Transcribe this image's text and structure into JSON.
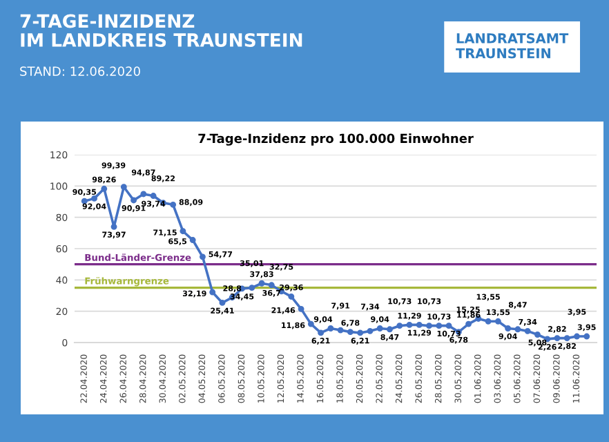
{
  "chart_data": {
    "type": "line",
    "title": "7-Tage-Inzidenz pro 100.000 Einwohner",
    "annotations": [
      "7-TAGE-INZIDENZ\nIM LANDKREIS TRAUNSTEIN",
      "STAND: 12.06.2020",
      "LANDRATSAMT\nTRAUNSTEIN"
    ],
    "categories": [
      "22.04.2020",
      null,
      "24.04.2020",
      null,
      "26.04.2020",
      null,
      "28.04.2020",
      null,
      "30.04.2020",
      null,
      "02.05.2020",
      null,
      "04.05.2020",
      null,
      "06.05.2020",
      null,
      "08.05.2020",
      null,
      "10.05.2020",
      null,
      "12.05.2020",
      null,
      "14.05.2020",
      null,
      "16.05.2020",
      null,
      "18.05.2020",
      null,
      "20.05.2020",
      null,
      "22.05.2020",
      null,
      "24.05.2020",
      null,
      "26.05.2020",
      null,
      "28.05.2020",
      null,
      "30.05.2020",
      null,
      "01.06.2020",
      null,
      "03.06.2020",
      null,
      "05.06.2020",
      null,
      "07.06.2020",
      null,
      "09.06.2020",
      null,
      "11.06.2020",
      null
    ],
    "series": [
      {
        "color": "#4472c4",
        "values": [
          90.35,
          92.04,
          98.26,
          73.97,
          99.39,
          90.91,
          94.87,
          93.74,
          89.22,
          88.09,
          71.15,
          65.5,
          54.77,
          32.19,
          25.41,
          28.8,
          34.45,
          35.01,
          37.83,
          36.7,
          32.75,
          29.36,
          21.46,
          11.86,
          6.21,
          9.04,
          7.91,
          6.78,
          6.21,
          7.34,
          9.04,
          8.47,
          10.73,
          11.29,
          11.29,
          10.73,
          10.73,
          10.73,
          6.78,
          11.86,
          15.25,
          13.55,
          13.55,
          9.04,
          8.47,
          7.34,
          5.08,
          2.26,
          2.82,
          2.82,
          3.95,
          3.95
        ],
        "value_labels": [
          "90,35",
          "92,04",
          "98,26",
          "73,97",
          "99,39",
          "90,91",
          "94,87",
          "93,74",
          "89,22",
          "88,09",
          "71,15",
          "65,5",
          "54,77",
          "32,19",
          "25,41",
          "28,8",
          "34,45",
          "35,01",
          "37,83",
          "36,7",
          "32,75",
          "29,36",
          "21,46",
          "11,86",
          "6,21",
          "9,04",
          "7,91",
          "6,78",
          "6,21",
          "7,34",
          "9,04",
          "8,47",
          "10,73",
          "11,29",
          "11,29",
          "10,73",
          "10,73",
          "10,73",
          "6,78",
          "11,86",
          "15,25",
          "13,55",
          "13,55",
          "9,04",
          "8,47",
          "7,34",
          "5,08",
          "2,26",
          "2,82",
          "2,82",
          "3,95",
          "3,95"
        ]
      }
    ],
    "ylim": [
      0,
      120
    ],
    "yticks": [
      0,
      20,
      40,
      60,
      80,
      100,
      120
    ],
    "grid": "y",
    "marker": "circle",
    "line_style": "solid",
    "ref_lines": [
      {
        "axis": "y",
        "value": 50,
        "label": "Bund-Länder-Grenze",
        "color": "#7b2c8a"
      },
      {
        "axis": "y",
        "value": 35,
        "label": "Frühwarngrenze",
        "color": "#a6b83a"
      }
    ]
  }
}
